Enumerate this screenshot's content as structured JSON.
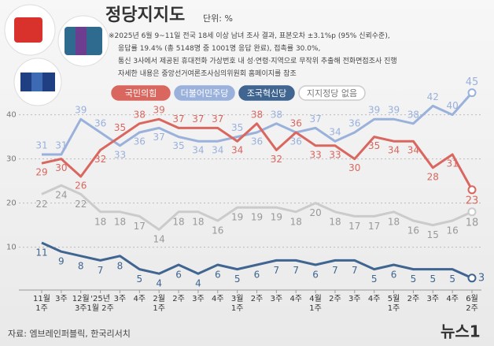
{
  "chart_data": {
    "type": "line",
    "title": "정당지지도",
    "unit": "단위: %",
    "notes": [
      "※2025년 6월 9~11일 전국 18세 이상 남녀 조사 결과, 표본오차 ±3.1%p (95% 신뢰수준),",
      "응답률 19.4% (총 5148명 중 1001명 응답 완료), 접촉률 30.0%,",
      "통신 3사에서 제공된 휴대전화 가상번호 내 성·연령·지역으로 무작위 추출해 전화면접조사 진행",
      "자세한 내용은 중앙선거여론조사심의위원회 홈페이지를 참조"
    ],
    "source": "자료: 엠브레인퍼블릭, 한국리서치",
    "logo": "뉴스1",
    "categories": [
      "11월\n1주",
      "3주",
      "12월\n3주",
      "'25년\n1월 2주",
      "3주",
      "4주",
      "2월\n1주",
      "2주",
      "3주",
      "4주",
      "3월\n1주",
      "2주",
      "3주",
      "4주",
      "4월\n1주",
      "2주",
      "3주",
      "4주",
      "5월\n1주",
      "2주",
      "3주",
      "4주",
      "6월\n2주"
    ],
    "series": [
      {
        "name": "국민의힘",
        "color": "#d9675f",
        "values": [
          29,
          30,
          26,
          32,
          35,
          38,
          39,
          37,
          37,
          37,
          34,
          38,
          32,
          36,
          33,
          33,
          30,
          35,
          34,
          34,
          28,
          31,
          23
        ]
      },
      {
        "name": "더불어민주당",
        "color": "#9ab1dc",
        "values": [
          31,
          31,
          39,
          36,
          33,
          36,
          37,
          35,
          34,
          34,
          35,
          36,
          38,
          36,
          37,
          34,
          36,
          39,
          39,
          38,
          42,
          40,
          45
        ]
      },
      {
        "name": "조국혁신당",
        "color": "#3f6590",
        "values": [
          11,
          9,
          8,
          7,
          8,
          5,
          4,
          6,
          4,
          6,
          5,
          6,
          7,
          7,
          6,
          7,
          7,
          5,
          6,
          5,
          5,
          5,
          3
        ]
      },
      {
        "name": "지지정당 없음",
        "color": "#cbcbcb",
        "values": [
          22,
          24,
          22,
          18,
          18,
          17,
          14,
          18,
          18,
          16,
          19,
          19,
          19,
          18,
          20,
          18,
          17,
          17,
          18,
          16,
          15,
          16,
          18
        ]
      }
    ],
    "ylim": [
      1,
      46
    ],
    "yticks": [
      10,
      20,
      30,
      40
    ],
    "grid": true
  }
}
